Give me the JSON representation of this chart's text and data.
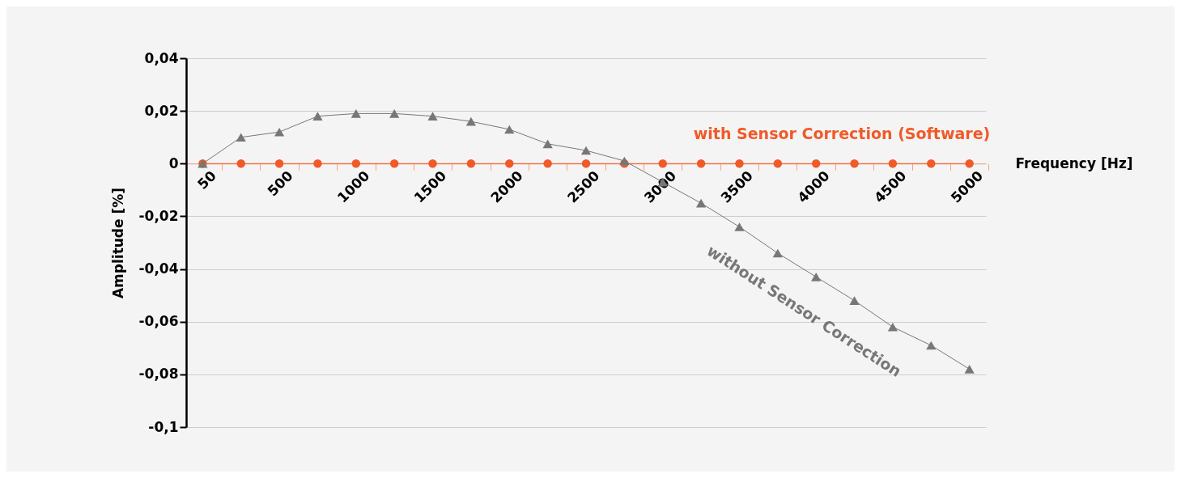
{
  "chart_data": {
    "type": "line",
    "xlabel": "Frequency [Hz]",
    "ylabel": "Amplitude [%]",
    "categories": [
      "50",
      null,
      "500",
      null,
      "1000",
      null,
      "1500",
      null,
      "2000",
      null,
      "2500",
      null,
      "3000",
      null,
      "3500",
      null,
      "4000",
      null,
      "4500",
      null,
      "5000"
    ],
    "series": [
      {
        "name": "with Sensor Correction (Software)",
        "color": "#f05a28",
        "marker": "circle",
        "values": [
          0,
          0,
          0,
          0,
          0,
          0,
          0,
          0,
          0,
          0,
          0,
          0,
          0,
          0,
          0,
          0,
          0,
          0,
          0,
          0,
          0
        ]
      },
      {
        "name": "without Sensor Correction",
        "color": "#777777",
        "marker": "triangle",
        "values": [
          0,
          0.01,
          0.012,
          0.018,
          0.019,
          0.019,
          0.018,
          0.016,
          0.013,
          0.0075,
          0.005,
          0.001,
          -0.007,
          -0.015,
          -0.024,
          -0.034,
          -0.043,
          -0.052,
          -0.062,
          -0.069,
          -0.078
        ]
      }
    ],
    "ylim": [
      -0.1,
      0.04
    ],
    "yticks": [
      {
        "value": -0.1,
        "label": "-0,1"
      },
      {
        "value": -0.08,
        "label": "-0,08"
      },
      {
        "value": -0.06,
        "label": "-0,06"
      },
      {
        "value": -0.04,
        "label": "-0,04"
      },
      {
        "value": -0.02,
        "label": "-0,02"
      },
      {
        "value": 0,
        "label": "0"
      },
      {
        "value": 0.02,
        "label": "0,02"
      },
      {
        "value": 0.04,
        "label": "0,04"
      }
    ],
    "grid": "y",
    "legend": false,
    "line_style": "solid"
  }
}
